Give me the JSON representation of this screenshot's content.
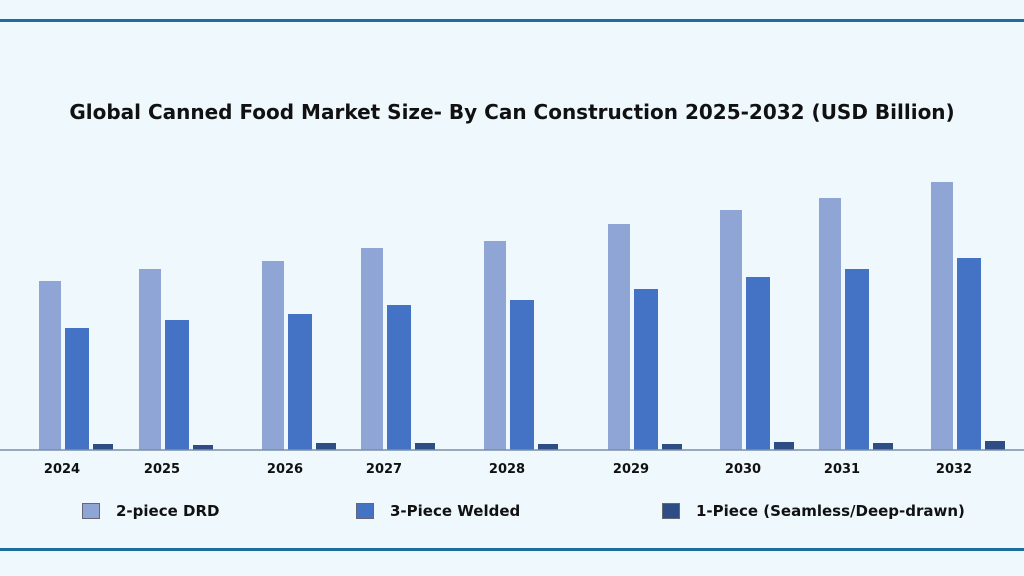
{
  "chart_data": {
    "type": "bar",
    "title": "Global Canned Food Market Size- By Can Construction 2025-2032 (USD Billion)",
    "xlabel": "",
    "ylabel": "",
    "categories": [
      "2024",
      "2025",
      "2026",
      "2027",
      "2028",
      "2029",
      "2030",
      "2031",
      "2032"
    ],
    "series": [
      {
        "name": "2-piece DRD",
        "color": "#8fa5d6",
        "values": [
          16.9,
          18.1,
          18.9,
          20.2,
          20.9,
          22.6,
          24.0,
          25.2,
          26.8
        ]
      },
      {
        "name": "3-Piece Welded",
        "color": "#4472c4",
        "values": [
          12.2,
          13.0,
          13.6,
          14.5,
          15.0,
          16.1,
          17.3,
          18.1,
          19.2
        ]
      },
      {
        "name": "1-Piece (Seamless/Deep-drawn)",
        "color": "#2e4d84",
        "values": [
          0.6,
          0.5,
          0.7,
          0.7,
          0.6,
          0.6,
          0.8,
          0.7,
          0.9
        ]
      }
    ],
    "ylim": [
      0,
      30
    ],
    "grid": false,
    "legend": "bottom"
  }
}
